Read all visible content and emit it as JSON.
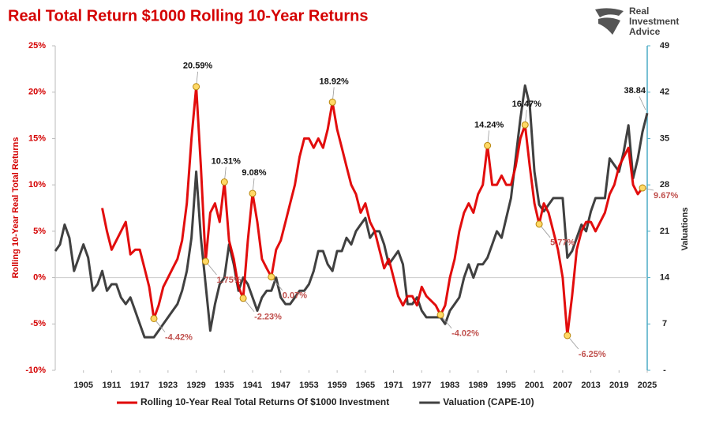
{
  "chart_data": {
    "type": "line",
    "title": "Real Total Return $1000 Rolling 10-Year Returns",
    "y_label": "Rolling 10-Year Real Total Returns",
    "y2_label": "Valuations",
    "x": [
      1899,
      1900,
      1901,
      1902,
      1903,
      1904,
      1905,
      1906,
      1907,
      1908,
      1909,
      1910,
      1911,
      1912,
      1913,
      1914,
      1915,
      1916,
      1917,
      1918,
      1919,
      1920,
      1921,
      1922,
      1923,
      1924,
      1925,
      1926,
      1927,
      1928,
      1929,
      1930,
      1931,
      1932,
      1933,
      1934,
      1935,
      1936,
      1937,
      1938,
      1939,
      1940,
      1941,
      1942,
      1943,
      1944,
      1945,
      1946,
      1947,
      1948,
      1949,
      1950,
      1951,
      1952,
      1953,
      1954,
      1955,
      1956,
      1957,
      1958,
      1959,
      1960,
      1961,
      1962,
      1963,
      1964,
      1965,
      1966,
      1967,
      1968,
      1969,
      1970,
      1971,
      1972,
      1973,
      1974,
      1975,
      1976,
      1977,
      1978,
      1979,
      1980,
      1981,
      1982,
      1983,
      1984,
      1985,
      1986,
      1987,
      1988,
      1989,
      1990,
      1991,
      1992,
      1993,
      1994,
      1995,
      1996,
      1997,
      1998,
      1999,
      2000,
      2001,
      2002,
      2003,
      2004,
      2005,
      2006,
      2007,
      2008,
      2009,
      2010,
      2011,
      2012,
      2013,
      2014,
      2015,
      2016,
      2017,
      2018,
      2019,
      2020,
      2021,
      2022,
      2023,
      2024,
      2025
    ],
    "xlim": [
      1899,
      2025
    ],
    "xticks": [
      1905,
      1911,
      1917,
      1923,
      1929,
      1935,
      1941,
      1947,
      1953,
      1959,
      1965,
      1971,
      1977,
      1983,
      1989,
      1995,
      2001,
      2007,
      2013,
      2019,
      2025
    ],
    "ylim": [
      -10,
      25
    ],
    "yticks": [
      {
        "value": -10,
        "label": "-10%"
      },
      {
        "value": -5,
        "label": "-5%"
      },
      {
        "value": 0,
        "label": "0%"
      },
      {
        "value": 5,
        "label": "5%"
      },
      {
        "value": 10,
        "label": "10%"
      },
      {
        "value": 15,
        "label": "15%"
      },
      {
        "value": 20,
        "label": "20%"
      },
      {
        "value": 25,
        "label": "25%"
      }
    ],
    "y2lim": [
      0,
      49
    ],
    "y2ticks": [
      {
        "value": 0,
        "label": "-"
      },
      7,
      14,
      21,
      28,
      35,
      42,
      49
    ],
    "legend": "bottom",
    "series": [
      {
        "name": "Rolling 10-Year Real Total Returns Of $1000 Investment",
        "color": "#e00000",
        "values": [
          null,
          null,
          null,
          null,
          null,
          null,
          null,
          null,
          null,
          null,
          7.5,
          5,
          3,
          4,
          5,
          6,
          2.5,
          3,
          3,
          1,
          -1,
          -4.42,
          -3,
          -1,
          0,
          1,
          2,
          4,
          8,
          15,
          20.59,
          12,
          1.75,
          7,
          8,
          6,
          10.31,
          4,
          2,
          -1,
          -2.23,
          4,
          9.08,
          6,
          2,
          1,
          0.07,
          3,
          4,
          6,
          8,
          10,
          13,
          15,
          15,
          14,
          15,
          14,
          16,
          18.92,
          16,
          14,
          12,
          10,
          9,
          7,
          8,
          6,
          5,
          3,
          1,
          2,
          0,
          -2,
          -3,
          -2,
          -2,
          -3,
          -1,
          -2,
          -2.5,
          -3,
          -4.02,
          -3,
          0,
          2,
          5,
          7,
          8,
          7,
          9,
          10,
          14.24,
          10,
          10,
          11,
          10,
          10,
          12,
          15,
          16.47,
          12,
          8,
          5.77,
          8,
          7,
          5,
          3,
          0,
          -6.25,
          -2,
          3,
          5,
          6,
          6,
          5,
          6,
          7,
          9,
          10,
          12,
          13,
          14,
          10,
          9,
          9.67,
          null
        ],
        "value_labels": [
          null,
          null,
          null,
          null,
          null,
          null,
          null,
          null,
          null,
          null,
          null,
          null,
          null,
          null,
          null,
          null,
          null,
          null,
          null,
          null,
          null,
          "-4.42%",
          null,
          null,
          null,
          null,
          null,
          null,
          null,
          null,
          "20.59%",
          null,
          "1.75%",
          null,
          null,
          null,
          "10.31%",
          null,
          null,
          null,
          "-2.23%",
          null,
          "9.08%",
          null,
          null,
          null,
          "0.07%",
          null,
          null,
          null,
          null,
          null,
          null,
          null,
          null,
          null,
          null,
          null,
          null,
          "18.92%",
          null,
          null,
          null,
          null,
          null,
          null,
          null,
          null,
          null,
          null,
          null,
          null,
          null,
          null,
          null,
          null,
          null,
          null,
          null,
          null,
          null,
          null,
          "-4.02%",
          null,
          null,
          null,
          null,
          null,
          null,
          null,
          null,
          null,
          "14.24%",
          null,
          null,
          null,
          null,
          null,
          null,
          null,
          "16.47%",
          null,
          null,
          "5.77%",
          null,
          null,
          null,
          null,
          null,
          "-6.25%",
          null,
          null,
          null,
          null,
          null,
          null,
          null,
          null,
          null,
          null,
          null,
          null,
          null,
          null,
          null,
          "9.67%",
          null
        ]
      },
      {
        "name": "Valuation (CAPE-10)",
        "color": "#404040",
        "axis": "y2",
        "values": [
          18,
          19,
          22,
          20,
          15,
          17,
          19,
          17,
          12,
          13,
          15,
          12,
          13,
          13,
          11,
          10,
          11,
          9,
          7,
          5,
          5,
          5,
          6,
          7,
          8,
          9,
          10,
          12,
          15,
          20,
          30,
          20,
          13,
          6,
          10,
          13,
          14,
          19,
          16,
          12,
          14,
          13,
          11,
          9,
          11,
          12,
          12,
          14,
          11,
          10,
          10,
          11,
          12,
          12,
          13,
          15,
          18,
          18,
          16,
          15,
          18,
          18,
          20,
          19,
          21,
          22,
          23,
          20,
          21,
          21,
          19,
          16,
          17,
          18,
          16,
          10,
          10,
          11,
          9,
          8,
          8,
          8,
          8,
          7,
          9,
          10,
          11,
          14,
          16,
          14,
          16,
          16,
          17,
          19,
          21,
          20,
          23,
          26,
          32,
          38,
          43,
          40,
          30,
          25,
          24,
          25,
          26,
          26,
          26,
          17,
          18,
          20,
          22,
          21,
          24,
          26,
          26,
          26,
          32,
          31,
          30,
          33,
          37,
          29,
          32,
          36,
          38.84
        ],
        "value_labels": [
          null,
          null,
          null,
          null,
          null,
          null,
          null,
          null,
          null,
          null,
          null,
          null,
          null,
          null,
          null,
          null,
          null,
          null,
          null,
          null,
          null,
          null,
          null,
          null,
          null,
          null,
          null,
          null,
          null,
          null,
          null,
          null,
          null,
          null,
          null,
          null,
          null,
          null,
          null,
          null,
          null,
          null,
          null,
          null,
          null,
          null,
          null,
          null,
          null,
          null,
          null,
          null,
          null,
          null,
          null,
          null,
          null,
          null,
          null,
          null,
          null,
          null,
          null,
          null,
          null,
          null,
          null,
          null,
          null,
          null,
          null,
          null,
          null,
          null,
          null,
          null,
          null,
          null,
          null,
          null,
          null,
          null,
          null,
          null,
          null,
          null,
          null,
          null,
          null,
          null,
          null,
          null,
          null,
          null,
          null,
          null,
          null,
          null,
          null,
          null,
          null,
          null,
          null,
          null,
          null,
          null,
          null,
          null,
          null,
          null,
          null,
          null,
          null,
          null,
          null,
          null,
          null,
          null,
          null,
          null,
          null,
          null,
          null,
          null,
          null,
          null,
          "38.84"
        ]
      }
    ]
  },
  "logo": [
    "Real",
    "Investment",
    "Advice"
  ]
}
